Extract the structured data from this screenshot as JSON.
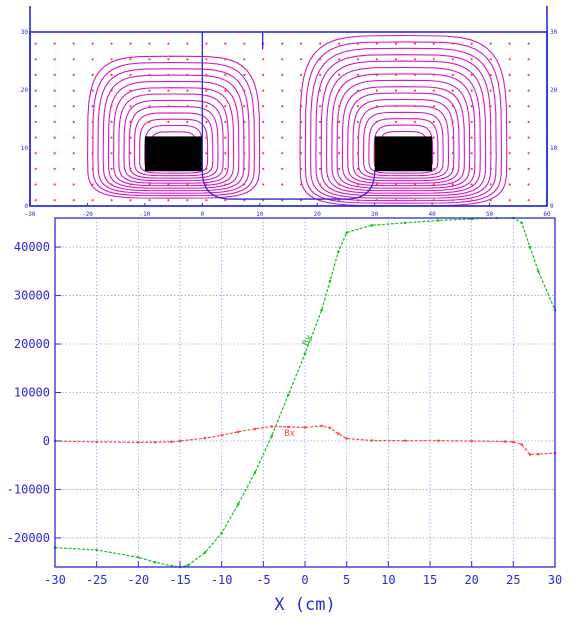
{
  "colors": {
    "frame": "#2b2bd6",
    "grid": "#9a9af0",
    "streamline": "#d21ac8",
    "arrow": "#ff3b3b",
    "bx": "#ff4a4a",
    "by": "#22bb22",
    "axis_text": "#2b2bd6"
  },
  "field_map": {
    "x_ticks": [
      "-30",
      "-20",
      "-10",
      "0",
      "10",
      "20",
      "30",
      "40",
      "50",
      "60"
    ],
    "y_ticks": [
      "0",
      "10",
      "20",
      "30"
    ],
    "xlim": [
      -30,
      60
    ],
    "ylim": [
      0,
      30
    ]
  },
  "chart_data": {
    "type": "line",
    "xlabel": "X (cm)",
    "ylabel": "",
    "xlim": [
      -30,
      30
    ],
    "ylim": [
      -26000,
      46000
    ],
    "x_ticks": [
      "-30",
      "-25",
      "-20",
      "-15",
      "-10",
      "-5",
      "0",
      "5",
      "10",
      "15",
      "20",
      "25",
      "30"
    ],
    "y_ticks": [
      "40000",
      "30000",
      "20000",
      "10000",
      "0",
      "-10000",
      "-20000"
    ],
    "grid": true,
    "series": [
      {
        "name": "By",
        "color": "#22bb22",
        "x": [
          -30,
          -25,
          -20,
          -18,
          -16,
          -15,
          -14,
          -12,
          -10,
          -8,
          -6,
          -4,
          -2,
          0,
          2,
          3,
          4,
          5,
          8,
          12,
          16,
          20,
          23,
          25,
          26,
          27,
          28,
          30
        ],
        "values": [
          -22000,
          -22500,
          -24000,
          -25000,
          -25800,
          -26000,
          -25600,
          -23000,
          -19000,
          -13000,
          -6500,
          1000,
          9500,
          18000,
          27000,
          33000,
          39000,
          43000,
          44500,
          45000,
          45500,
          45800,
          46000,
          46000,
          45000,
          40000,
          35000,
          27000
        ]
      },
      {
        "name": "Bx",
        "color": "#ff4a4a",
        "x": [
          -30,
          -25,
          -20,
          -18,
          -16,
          -15,
          -12,
          -10,
          -8,
          -6,
          -4,
          -2,
          0,
          2,
          3,
          4,
          5,
          8,
          12,
          16,
          20,
          24,
          25,
          26,
          27,
          28,
          30
        ],
        "values": [
          0,
          -200,
          -300,
          -250,
          -150,
          0,
          600,
          1200,
          1900,
          2500,
          3000,
          2900,
          2800,
          3100,
          2700,
          1500,
          500,
          100,
          50,
          50,
          0,
          -100,
          -200,
          -700,
          -2800,
          -2700,
          -2500
        ]
      }
    ],
    "annotations": [
      {
        "text": "Bx",
        "x": -2.5,
        "y": 1000,
        "series": "Bx"
      },
      {
        "text": "By",
        "x": 0.3,
        "y": 19500,
        "series": "By"
      }
    ]
  }
}
